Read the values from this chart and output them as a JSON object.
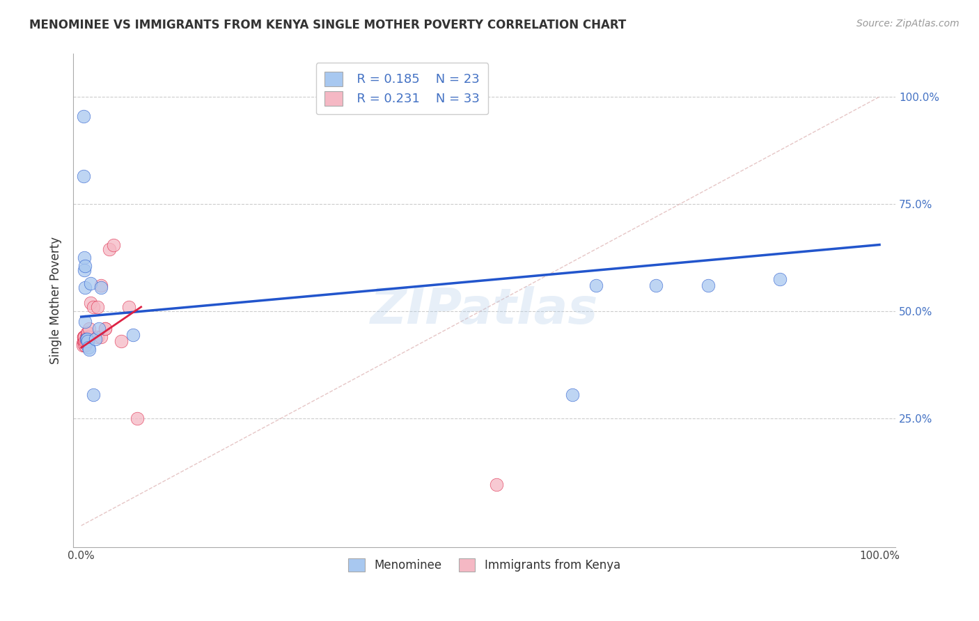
{
  "title": "MENOMINEE VS IMMIGRANTS FROM KENYA SINGLE MOTHER POVERTY CORRELATION CHART",
  "source": "Source: ZipAtlas.com",
  "ylabel": "Single Mother Poverty",
  "legend_r1": "R = 0.185",
  "legend_n1": "N = 23",
  "legend_r2": "R = 0.231",
  "legend_n2": "N = 33",
  "blue_color": "#a8c8f0",
  "pink_color": "#f5b8c4",
  "trendline_blue_color": "#2255cc",
  "trendline_pink_color": "#dd2244",
  "diagonal_color": "#e0b8b8",
  "watermark": "ZIPatlas",
  "background_color": "#ffffff",
  "grid_color": "#cccccc",
  "menominee_x": [
    0.003,
    0.004,
    0.004,
    0.005,
    0.005,
    0.005,
    0.006,
    0.007,
    0.008,
    0.009,
    0.01,
    0.012,
    0.015,
    0.018,
    0.022,
    0.025,
    0.065,
    0.615,
    0.645,
    0.72,
    0.785,
    0.875,
    0.003
  ],
  "menominee_y": [
    0.955,
    0.625,
    0.595,
    0.555,
    0.475,
    0.605,
    0.435,
    0.435,
    0.43,
    0.415,
    0.41,
    0.565,
    0.305,
    0.435,
    0.46,
    0.555,
    0.445,
    0.305,
    0.56,
    0.56,
    0.56,
    0.575,
    0.815
  ],
  "kenya_x": [
    0.002,
    0.002,
    0.003,
    0.003,
    0.003,
    0.004,
    0.004,
    0.004,
    0.005,
    0.005,
    0.005,
    0.006,
    0.006,
    0.007,
    0.007,
    0.008,
    0.008,
    0.01,
    0.01,
    0.012,
    0.015,
    0.02,
    0.02,
    0.025,
    0.025,
    0.03,
    0.03,
    0.035,
    0.04,
    0.05,
    0.06,
    0.07,
    0.52
  ],
  "kenya_y": [
    0.425,
    0.42,
    0.43,
    0.44,
    0.44,
    0.43,
    0.44,
    0.44,
    0.42,
    0.42,
    0.43,
    0.43,
    0.44,
    0.45,
    0.44,
    0.44,
    0.45,
    0.44,
    0.46,
    0.52,
    0.51,
    0.51,
    0.44,
    0.56,
    0.44,
    0.46,
    0.46,
    0.645,
    0.655,
    0.43,
    0.51,
    0.25,
    0.095
  ],
  "xlim": [
    -0.01,
    1.02
  ],
  "ylim": [
    -0.05,
    1.1
  ],
  "blue_trend_x": [
    0.0,
    1.0
  ],
  "blue_trend_y": [
    0.487,
    0.655
  ],
  "pink_trend_x": [
    0.0,
    0.075
  ],
  "pink_trend_y": [
    0.415,
    0.51
  ]
}
